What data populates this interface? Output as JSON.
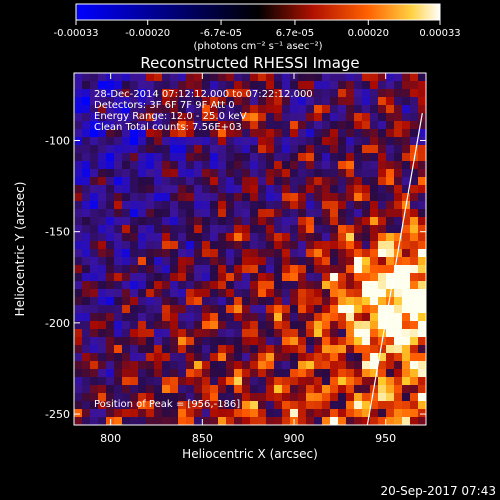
{
  "chart_data": {
    "type": "heatmap",
    "title": "Reconstructed RHESSI Image",
    "xlabel": "Heliocentric X (arcsec)",
    "ylabel": "Heliocentric Y (arcsec)",
    "xlim": [
      780,
      972
    ],
    "ylim": [
      -256,
      -63
    ],
    "xticks": [
      800,
      850,
      900,
      950
    ],
    "yticks": [
      -100,
      -150,
      -200,
      -250
    ],
    "colorbar": {
      "tick_labels": [
        "-0.00033",
        "-0.00020",
        "-6.7e-05",
        "6.7e-05",
        "0.00020",
        "0.00033"
      ],
      "units": "(photons cm⁻² s⁻¹ asec⁻²)",
      "range": [
        -0.00033,
        0.00033
      ]
    },
    "annotations": [
      "28-Dec-2014 07:12:12.000 to 07:22:12.000",
      "Detectors: 3F 6F 7F 9F  Att 0",
      "Energy Range: 12.0 - 25.0 keV",
      "Clean     Total counts: 7.56E+03"
    ],
    "peak_text": "Position of Peak = [956,-186]",
    "peak_position": [
      956,
      -186
    ],
    "limb_line": [
      [
        940,
        -256
      ],
      [
        970,
        -85
      ]
    ]
  },
  "timestamp": "20-Sep-2017 07:43"
}
